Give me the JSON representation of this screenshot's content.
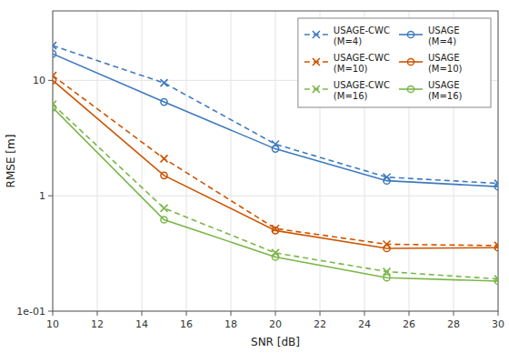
{
  "chart_data": {
    "type": "line",
    "xlabel": "SNR [dB]",
    "ylabel": "RMSE [m]",
    "x": [
      10,
      15,
      20,
      25,
      30
    ],
    "series": [
      {
        "name": "USAGE-CWC\n(M=4)",
        "color": "#3f7abf",
        "marker": "x",
        "line_style": "dashed",
        "values": [
          20.0,
          9.5,
          2.8,
          1.45,
          1.28
        ]
      },
      {
        "name": "USAGE\n(M=4)",
        "color": "#3f7abf",
        "marker": "circle",
        "line_style": "solid",
        "values": [
          17.0,
          6.5,
          2.55,
          1.35,
          1.2
        ]
      },
      {
        "name": "USAGE-CWC\n(M=10)",
        "color": "#cc5500",
        "marker": "x",
        "line_style": "dashed",
        "values": [
          11.0,
          2.1,
          0.52,
          0.38,
          0.37
        ]
      },
      {
        "name": "USAGE\n(M=10)",
        "color": "#cc5500",
        "marker": "circle",
        "line_style": "solid",
        "values": [
          10.0,
          1.5,
          0.5,
          0.35,
          0.355
        ]
      },
      {
        "name": "USAGE-CWC\n(M=16)",
        "color": "#7ab648",
        "marker": "x",
        "line_style": "dashed",
        "values": [
          6.2,
          0.78,
          0.32,
          0.22,
          0.19
        ]
      },
      {
        "name": "USAGE\n(M=16)",
        "color": "#7ab648",
        "marker": "circle",
        "line_style": "solid",
        "values": [
          5.8,
          0.62,
          0.295,
          0.195,
          0.182
        ]
      }
    ],
    "xlim": [
      10,
      30
    ],
    "ylim": [
      0.1,
      40
    ],
    "xticks": [
      10,
      12,
      14,
      16,
      18,
      20,
      22,
      24,
      26,
      28,
      30
    ],
    "yticks": [
      {
        "value": 0.1,
        "label": "1e-01"
      },
      1,
      10
    ],
    "log": "y",
    "grid": true,
    "legend": "upper right"
  }
}
